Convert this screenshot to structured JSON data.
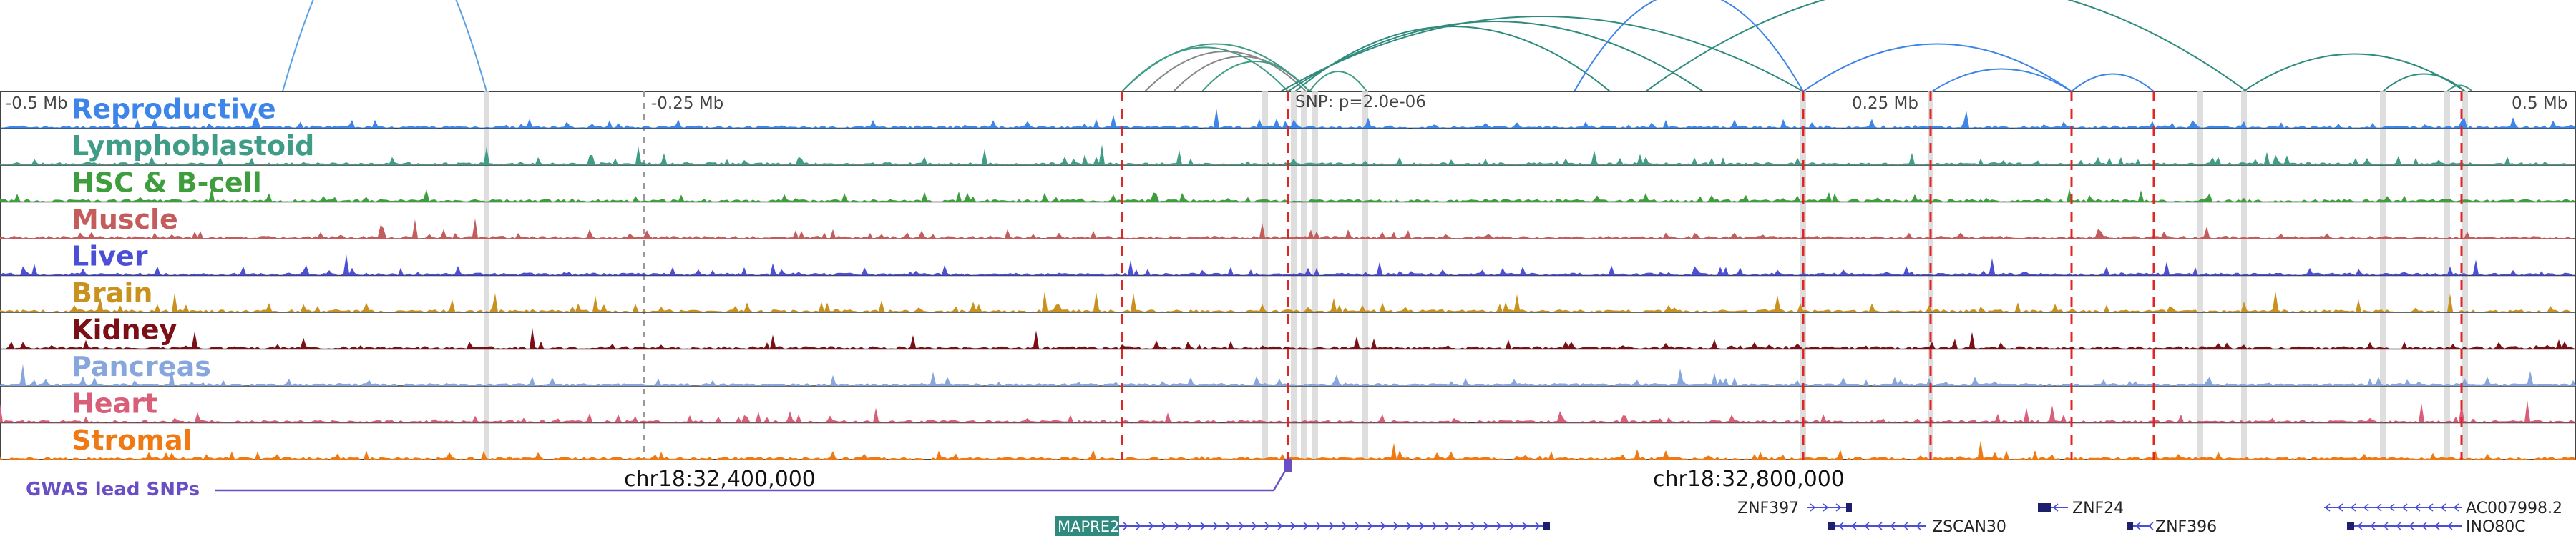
{
  "axis": {
    "ticks": [
      "-0.5 Mb",
      "-0.25 Mb",
      "0.25 Mb",
      "0.5 Mb"
    ],
    "snp_label": "SNP: p=2.0e-06",
    "coord_left": "chr18:32,400,000",
    "coord_right": "chr18:32,800,000"
  },
  "tracks": [
    {
      "name": "Reproductive",
      "color": "#3d85e8"
    },
    {
      "name": "Lymphoblastoid",
      "color": "#3f9c87"
    },
    {
      "name": "HSC & B-cell",
      "color": "#3e9e3e"
    },
    {
      "name": "Muscle",
      "color": "#c45c5c"
    },
    {
      "name": "Liver",
      "color": "#4a4fd6"
    },
    {
      "name": "Brain",
      "color": "#c9921f"
    },
    {
      "name": "Kidney",
      "color": "#7a0f16"
    },
    {
      "name": "Pancreas",
      "color": "#86a6dc"
    },
    {
      "name": "Heart",
      "color": "#d95f79"
    },
    {
      "name": "Stromal",
      "color": "#ef7a14"
    }
  ],
  "gwas": {
    "label": "GWAS lead SNPs",
    "color": "#6a4fc4"
  },
  "genes": [
    {
      "name": "MAPRE2"
    },
    {
      "name": "ZNF397"
    },
    {
      "name": "ZSCAN30"
    },
    {
      "name": "ZNF24"
    },
    {
      "name": "ZNF396"
    },
    {
      "name": "AC007998.2"
    },
    {
      "name": "INO80C"
    }
  ]
}
